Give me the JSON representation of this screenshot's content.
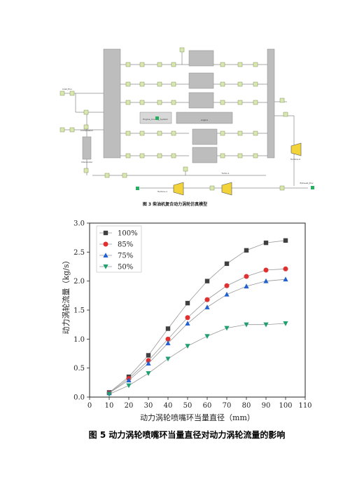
{
  "figure3": {
    "caption": "图 3  柴油机复合动力涡轮仿真模型",
    "labels": {
      "engine_block": "Engine_Cooling_System",
      "center_block": "engine",
      "turbine_left": "Turbine-1",
      "turbine_mid": "Turbo-1",
      "turbine_right": "Turbine-2",
      "compressor": "Compressor",
      "intercooler": "Intercooler",
      "inlet_env": "Inlet_Env",
      "exhaust_env": "Exhaust_Env"
    }
  },
  "figure5": {
    "caption": "图 5  动力涡轮喷嘴环当量直径对动力涡轮流量的影响"
  },
  "chart_data": {
    "type": "line",
    "xlabel": "动力涡轮喷嘴环当量直径（mm）",
    "ylabel": "动力涡轮流量（kg/s）",
    "xlim": [
      0,
      110
    ],
    "ylim": [
      0.0,
      3.0
    ],
    "xticks": [
      0,
      10,
      20,
      30,
      40,
      50,
      60,
      70,
      80,
      90,
      100,
      110
    ],
    "yticks": [
      "0.0",
      "0.5",
      "1.0",
      "1.5",
      "2.0",
      "2.5",
      "3.0"
    ],
    "x": [
      10,
      20,
      30,
      40,
      50,
      60,
      70,
      80,
      90,
      100
    ],
    "legend_position": "top-left",
    "grid": false,
    "series": [
      {
        "name": "100%",
        "marker": "square",
        "color": "#404040",
        "values": [
          0.08,
          0.35,
          0.72,
          1.18,
          1.62,
          2.0,
          2.3,
          2.53,
          2.66,
          2.7
        ]
      },
      {
        "name": "85%",
        "marker": "circle",
        "color": "#e03030",
        "values": [
          0.07,
          0.32,
          0.63,
          1.0,
          1.37,
          1.68,
          1.92,
          2.08,
          2.19,
          2.21
        ]
      },
      {
        "name": "75%",
        "marker": "triangle-up",
        "color": "#2060d0",
        "values": [
          0.07,
          0.29,
          0.58,
          0.93,
          1.27,
          1.55,
          1.77,
          1.91,
          2.0,
          2.03
        ]
      },
      {
        "name": "50%",
        "marker": "triangle-down",
        "color": "#20a070",
        "values": [
          0.05,
          0.2,
          0.41,
          0.66,
          0.88,
          1.05,
          1.19,
          1.25,
          1.25,
          1.27
        ]
      }
    ]
  }
}
